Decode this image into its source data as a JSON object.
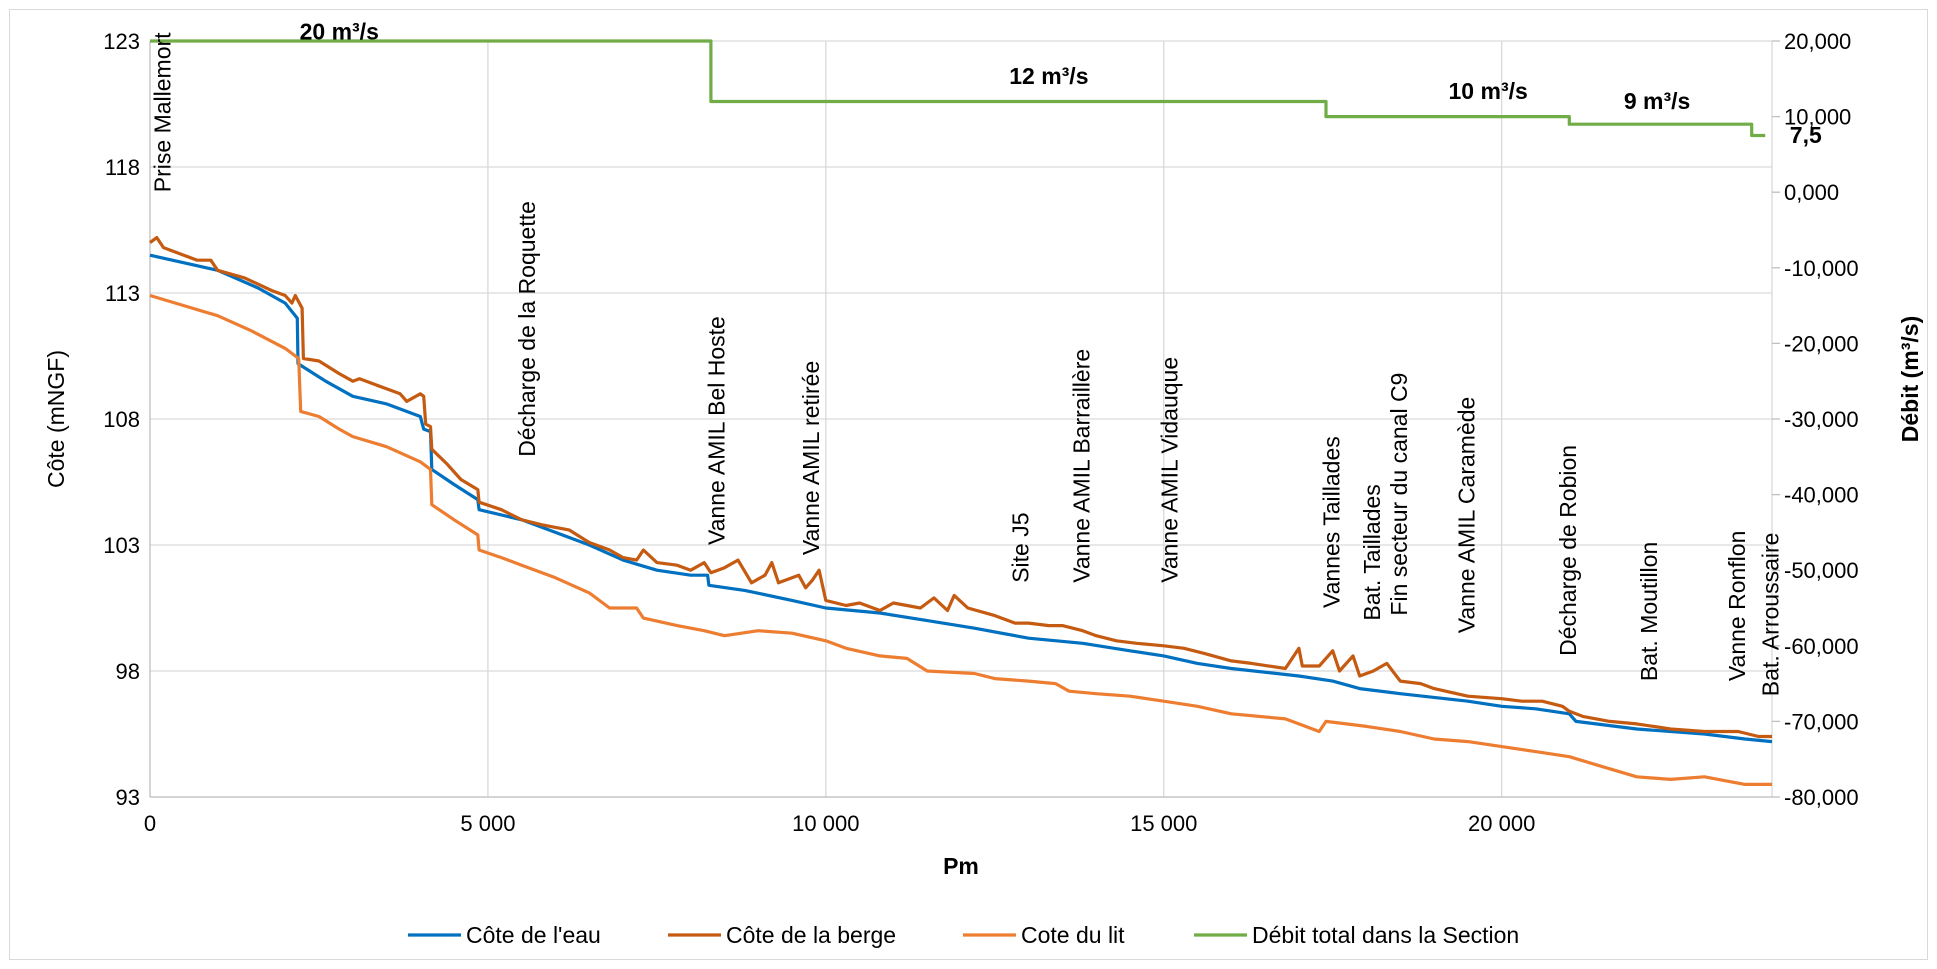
{
  "chart_data": {
    "type": "line",
    "title": "",
    "xlabel": "Pm",
    "ylabel": "Côte (mNGF)",
    "y2label": "Débit (m³/s)",
    "xlim": [
      0,
      24000
    ],
    "ylim": [
      93,
      123
    ],
    "y2lim": [
      -80000,
      20000
    ],
    "grid": true,
    "legend_position": "bottom",
    "x_ticks": [
      0,
      5000,
      10000,
      15000,
      20000
    ],
    "x_tick_labels": [
      "0",
      "5 000",
      "10 000",
      "15 000",
      "20 000"
    ],
    "y_ticks": [
      93,
      98,
      103,
      108,
      113,
      118,
      123
    ],
    "y_tick_labels": [
      "93",
      "98",
      "103",
      "108",
      "113",
      "118",
      "123"
    ],
    "y2_ticks": [
      20000,
      10000,
      0,
      -10000,
      -20000,
      -30000,
      -40000,
      -50000,
      -60000,
      -70000,
      -80000
    ],
    "y2_tick_labels": [
      "20,000",
      "10,000",
      "0,000",
      "-10,000",
      "-20,000",
      "-30,000",
      "-40,000",
      "-50,000",
      "-60,000",
      "-70,000",
      "-80,000"
    ],
    "series": [
      {
        "name": "Côte de l'eau",
        "color": "#0070c0",
        "axis": "left",
        "points": [
          [
            0,
            114.5
          ],
          [
            1000,
            113.9
          ],
          [
            1600,
            113.2
          ],
          [
            2000,
            112.6
          ],
          [
            2180,
            112.0
          ],
          [
            2190,
            110.2
          ],
          [
            2600,
            109.5
          ],
          [
            3000,
            108.9
          ],
          [
            3500,
            108.6
          ],
          [
            4000,
            108.1
          ],
          [
            4050,
            107.6
          ],
          [
            4150,
            107.5
          ],
          [
            4170,
            106.0
          ],
          [
            4500,
            105.4
          ],
          [
            4850,
            104.8
          ],
          [
            4870,
            104.4
          ],
          [
            5500,
            104.0
          ],
          [
            6000,
            103.5
          ],
          [
            6500,
            103.0
          ],
          [
            7000,
            102.4
          ],
          [
            7500,
            102.0
          ],
          [
            8000,
            101.8
          ],
          [
            8250,
            101.8
          ],
          [
            8270,
            101.4
          ],
          [
            8800,
            101.2
          ],
          [
            9500,
            100.8
          ],
          [
            10000,
            100.5
          ],
          [
            10800,
            100.3
          ],
          [
            11500,
            100.0
          ],
          [
            12200,
            99.7
          ],
          [
            13000,
            99.3
          ],
          [
            13800,
            99.1
          ],
          [
            14500,
            98.8
          ],
          [
            15000,
            98.6
          ],
          [
            15500,
            98.3
          ],
          [
            16000,
            98.1
          ],
          [
            17000,
            97.8
          ],
          [
            17500,
            97.6
          ],
          [
            17900,
            97.3
          ],
          [
            18500,
            97.1
          ],
          [
            19500,
            96.8
          ],
          [
            20000,
            96.6
          ],
          [
            20500,
            96.5
          ],
          [
            21000,
            96.3
          ],
          [
            21100,
            96.0
          ],
          [
            22000,
            95.7
          ],
          [
            23000,
            95.5
          ],
          [
            23600,
            95.3
          ],
          [
            24000,
            95.2
          ]
        ]
      },
      {
        "name": "Côte de la berge",
        "color": "#c55a11",
        "axis": "left",
        "points": [
          [
            0,
            115.0
          ],
          [
            100,
            115.2
          ],
          [
            200,
            114.8
          ],
          [
            500,
            114.5
          ],
          [
            700,
            114.3
          ],
          [
            900,
            114.3
          ],
          [
            1000,
            113.9
          ],
          [
            1400,
            113.6
          ],
          [
            1800,
            113.1
          ],
          [
            2000,
            112.9
          ],
          [
            2100,
            112.6
          ],
          [
            2150,
            112.9
          ],
          [
            2250,
            112.4
          ],
          [
            2270,
            110.4
          ],
          [
            2500,
            110.3
          ],
          [
            2800,
            109.8
          ],
          [
            3000,
            109.5
          ],
          [
            3100,
            109.6
          ],
          [
            3500,
            109.2
          ],
          [
            3700,
            109.0
          ],
          [
            3800,
            108.7
          ],
          [
            4000,
            109.0
          ],
          [
            4050,
            108.9
          ],
          [
            4080,
            107.8
          ],
          [
            4150,
            107.7
          ],
          [
            4170,
            106.8
          ],
          [
            4400,
            106.2
          ],
          [
            4600,
            105.6
          ],
          [
            4850,
            105.2
          ],
          [
            4870,
            104.7
          ],
          [
            5200,
            104.4
          ],
          [
            5500,
            104.0
          ],
          [
            5800,
            103.8
          ],
          [
            6000,
            103.7
          ],
          [
            6200,
            103.6
          ],
          [
            6500,
            103.1
          ],
          [
            6800,
            102.8
          ],
          [
            7000,
            102.5
          ],
          [
            7200,
            102.4
          ],
          [
            7300,
            102.8
          ],
          [
            7500,
            102.3
          ],
          [
            7800,
            102.2
          ],
          [
            8000,
            102.0
          ],
          [
            8200,
            102.3
          ],
          [
            8300,
            101.9
          ],
          [
            8500,
            102.1
          ],
          [
            8700,
            102.4
          ],
          [
            8900,
            101.5
          ],
          [
            9100,
            101.8
          ],
          [
            9200,
            102.3
          ],
          [
            9300,
            101.5
          ],
          [
            9600,
            101.8
          ],
          [
            9700,
            101.3
          ],
          [
            9800,
            101.6
          ],
          [
            9900,
            102.0
          ],
          [
            10000,
            100.8
          ],
          [
            10300,
            100.6
          ],
          [
            10500,
            100.7
          ],
          [
            10800,
            100.4
          ],
          [
            11000,
            100.7
          ],
          [
            11400,
            100.5
          ],
          [
            11600,
            100.9
          ],
          [
            11800,
            100.4
          ],
          [
            11900,
            101.0
          ],
          [
            12100,
            100.5
          ],
          [
            12500,
            100.2
          ],
          [
            12800,
            99.9
          ],
          [
            13000,
            99.9
          ],
          [
            13300,
            99.8
          ],
          [
            13500,
            99.8
          ],
          [
            13800,
            99.6
          ],
          [
            14000,
            99.4
          ],
          [
            14300,
            99.2
          ],
          [
            14600,
            99.1
          ],
          [
            15000,
            99.0
          ],
          [
            15300,
            98.9
          ],
          [
            15600,
            98.7
          ],
          [
            16000,
            98.4
          ],
          [
            16300,
            98.3
          ],
          [
            16800,
            98.1
          ],
          [
            17000,
            98.9
          ],
          [
            17050,
            98.2
          ],
          [
            17300,
            98.2
          ],
          [
            17500,
            98.8
          ],
          [
            17600,
            98.0
          ],
          [
            17800,
            98.6
          ],
          [
            17900,
            97.8
          ],
          [
            18100,
            98.0
          ],
          [
            18300,
            98.3
          ],
          [
            18500,
            97.6
          ],
          [
            18800,
            97.5
          ],
          [
            19000,
            97.3
          ],
          [
            19500,
            97.0
          ],
          [
            20000,
            96.9
          ],
          [
            20300,
            96.8
          ],
          [
            20600,
            96.8
          ],
          [
            20900,
            96.6
          ],
          [
            21000,
            96.4
          ],
          [
            21200,
            96.2
          ],
          [
            21600,
            96.0
          ],
          [
            22000,
            95.9
          ],
          [
            22500,
            95.7
          ],
          [
            23000,
            95.6
          ],
          [
            23500,
            95.6
          ],
          [
            23800,
            95.4
          ],
          [
            24000,
            95.4
          ]
        ]
      },
      {
        "name": "Cote du lit",
        "color": "#ed7d31",
        "axis": "left",
        "points": [
          [
            0,
            112.9
          ],
          [
            500,
            112.5
          ],
          [
            1000,
            112.1
          ],
          [
            1500,
            111.5
          ],
          [
            2000,
            110.8
          ],
          [
            2200,
            110.4
          ],
          [
            2230,
            108.3
          ],
          [
            2500,
            108.1
          ],
          [
            2800,
            107.6
          ],
          [
            3000,
            107.3
          ],
          [
            3500,
            106.9
          ],
          [
            4000,
            106.3
          ],
          [
            4150,
            106.0
          ],
          [
            4170,
            104.6
          ],
          [
            4500,
            104.0
          ],
          [
            4850,
            103.4
          ],
          [
            4870,
            102.8
          ],
          [
            5200,
            102.5
          ],
          [
            5500,
            102.2
          ],
          [
            6000,
            101.7
          ],
          [
            6500,
            101.1
          ],
          [
            6800,
            100.5
          ],
          [
            7200,
            100.5
          ],
          [
            7300,
            100.1
          ],
          [
            7800,
            99.8
          ],
          [
            8200,
            99.6
          ],
          [
            8500,
            99.4
          ],
          [
            9000,
            99.6
          ],
          [
            9500,
            99.5
          ],
          [
            10000,
            99.2
          ],
          [
            10300,
            98.9
          ],
          [
            10800,
            98.6
          ],
          [
            11200,
            98.5
          ],
          [
            11500,
            98.0
          ],
          [
            12200,
            97.9
          ],
          [
            12500,
            97.7
          ],
          [
            13000,
            97.6
          ],
          [
            13400,
            97.5
          ],
          [
            13600,
            97.2
          ],
          [
            14000,
            97.1
          ],
          [
            14500,
            97.0
          ],
          [
            15000,
            96.8
          ],
          [
            15500,
            96.6
          ],
          [
            16000,
            96.3
          ],
          [
            16800,
            96.1
          ],
          [
            17000,
            95.9
          ],
          [
            17300,
            95.6
          ],
          [
            17400,
            96.0
          ],
          [
            18000,
            95.8
          ],
          [
            18500,
            95.6
          ],
          [
            19000,
            95.3
          ],
          [
            19500,
            95.2
          ],
          [
            20000,
            95.0
          ],
          [
            20500,
            94.8
          ],
          [
            21000,
            94.6
          ],
          [
            21500,
            94.2
          ],
          [
            22000,
            93.8
          ],
          [
            22500,
            93.7
          ],
          [
            23000,
            93.8
          ],
          [
            23600,
            93.5
          ],
          [
            24000,
            93.5
          ]
        ]
      },
      {
        "name": "Débit total dans la Section",
        "color": "#70ad47",
        "axis": "right",
        "points": [
          [
            0,
            20000
          ],
          [
            8300,
            20000
          ],
          [
            8300,
            12000
          ],
          [
            17400,
            12000
          ],
          [
            17400,
            10000
          ],
          [
            21000,
            10000
          ],
          [
            21000,
            9000
          ],
          [
            23700,
            9000
          ],
          [
            23700,
            7500
          ],
          [
            23900,
            7500
          ]
        ]
      }
    ],
    "site_labels": [
      {
        "text": "Prise Mallemort",
        "x": 300,
        "y": 117
      },
      {
        "text": "Décharge de la Roquette",
        "x": 5700,
        "y": 106.5
      },
      {
        "text": "Vanne AMIL Bel Hoste",
        "x": 8500,
        "y": 103
      },
      {
        "text": "Vanne AMIL retirée",
        "x": 9900,
        "y": 102.6
      },
      {
        "text": "Site J5",
        "x": 13000,
        "y": 101.5
      },
      {
        "text": "Vanne AMIL Barraillère",
        "x": 13900,
        "y": 101.5
      },
      {
        "text": "Vanne AMIL Vidauque",
        "x": 15200,
        "y": 101.5
      },
      {
        "text": "Vannes Taillades",
        "x": 17600,
        "y": 100.5
      },
      {
        "text": "Bat. Taillades",
        "x": 18200,
        "y": 100.0
      },
      {
        "text": "Fin secteur du canal C9",
        "x": 18600,
        "y": 100.2
      },
      {
        "text": "Vanne AMIL Caramède",
        "x": 19600,
        "y": 99.5
      },
      {
        "text": "Décharge de Robion",
        "x": 21100,
        "y": 98.6
      },
      {
        "text": "Bat. Moutillon",
        "x": 22300,
        "y": 97.6
      },
      {
        "text": "Vanne Ronflon",
        "x": 23600,
        "y": 97.6
      },
      {
        "text": "Bat. Arroussaire",
        "x": 24100,
        "y": 97.0
      }
    ],
    "flow_labels": [
      {
        "text": "20 m³/s",
        "x": 2800,
        "y2": 20200
      },
      {
        "text": "12 m³/s",
        "x": 13300,
        "y2": 14300
      },
      {
        "text": "10 m³/s",
        "x": 19800,
        "y2": 12300
      },
      {
        "text": "9 m³/s",
        "x": 22300,
        "y2": 11000
      },
      {
        "text": "7,5",
        "x": 24500,
        "y2": 6500
      }
    ]
  }
}
